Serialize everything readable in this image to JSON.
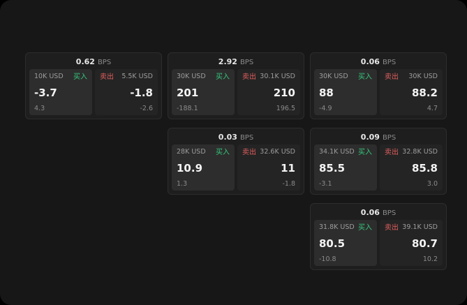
{
  "labels": {
    "bps_suffix": "BPS",
    "buy": "买入",
    "sell": "卖出"
  },
  "colors": {
    "background": "#171717",
    "card_bg": "#1e1e1e",
    "panel_buy_bg": "#2d2d2d",
    "panel_sell_bg": "#242424",
    "buy": "#35c77c",
    "sell": "#e05e5e"
  },
  "cards": [
    {
      "bps": "0.62",
      "buy": {
        "amount": "10K USD",
        "price": "-3.7",
        "delta": "4.3"
      },
      "sell": {
        "amount": "5.5K USD",
        "price": "-1.8",
        "delta": "-2.6"
      }
    },
    {
      "bps": "2.92",
      "buy": {
        "amount": "30K USD",
        "price": "201",
        "delta": "-188.1"
      },
      "sell": {
        "amount": "30.1K USD",
        "price": "210",
        "delta": "196.5"
      }
    },
    {
      "bps": "0.06",
      "buy": {
        "amount": "30K USD",
        "price": "88",
        "delta": "-4.9"
      },
      "sell": {
        "amount": "30K USD",
        "price": "88.2",
        "delta": "4.7"
      }
    },
    {
      "bps": "0.03",
      "buy": {
        "amount": "28K USD",
        "price": "10.9",
        "delta": "1.3"
      },
      "sell": {
        "amount": "32.6K USD",
        "price": "11",
        "delta": "-1.8"
      }
    },
    {
      "bps": "0.09",
      "buy": {
        "amount": "34.1K USD",
        "price": "85.5",
        "delta": "-3.1"
      },
      "sell": {
        "amount": "32.8K USD",
        "price": "85.8",
        "delta": "3.0"
      }
    },
    {
      "bps": "0.06",
      "buy": {
        "amount": "31.8K USD",
        "price": "80.5",
        "delta": "-10.8"
      },
      "sell": {
        "amount": "39.1K USD",
        "price": "80.7",
        "delta": "10.2"
      }
    }
  ]
}
